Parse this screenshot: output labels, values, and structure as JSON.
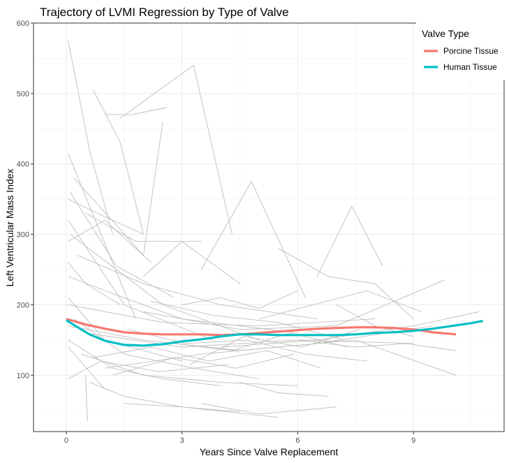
{
  "chart_data": {
    "type": "line",
    "title": "Trajectory of LVMI Regression by Type of Valve",
    "xlabel": "Years Since Valve Replacement",
    "ylabel": "Left Ventricular Mass Index",
    "xlim": [
      -0.85,
      11.35
    ],
    "ylim": [
      20,
      600
    ],
    "x_ticks": [
      0,
      3,
      6,
      9
    ],
    "y_ticks": [
      100,
      200,
      300,
      400,
      500,
      600
    ],
    "grid": true,
    "legend": {
      "title": "Valve Type",
      "position": "top-right",
      "entries": [
        {
          "label": "Porcine Tissue",
          "color": "#F8766D"
        },
        {
          "label": "Human Tissue",
          "color": "#00BFC4"
        }
      ]
    },
    "series": [
      {
        "name": "Porcine Tissue",
        "color": "#F8766D",
        "x": [
          0,
          0.5,
          1.0,
          1.5,
          2.0,
          2.5,
          3.0,
          3.5,
          4.0,
          4.5,
          5.0,
          5.5,
          6.0,
          6.5,
          7.0,
          7.5,
          8.0,
          8.5,
          9.0,
          9.5,
          10.1
        ],
        "y": [
          180,
          172,
          166,
          161,
          159,
          158,
          158,
          158,
          157,
          158,
          160,
          162,
          164,
          166,
          167,
          168,
          168,
          167,
          165,
          161,
          158
        ]
      },
      {
        "name": "Human Tissue",
        "color": "#00BFC4",
        "x": [
          0,
          0.3,
          0.6,
          1.0,
          1.5,
          2.0,
          2.5,
          3.0,
          3.5,
          4.0,
          4.5,
          5.0,
          5.5,
          6.0,
          6.5,
          7.0,
          7.5,
          8.0,
          8.5,
          9.0,
          9.5,
          10.0,
          10.5,
          10.8
        ],
        "y": [
          178,
          168,
          158,
          149,
          143,
          142,
          144,
          148,
          151,
          155,
          158,
          158,
          157,
          157,
          157,
          157,
          158,
          160,
          161,
          163,
          166,
          170,
          174,
          177
        ]
      }
    ],
    "individual_trajectories": {
      "color": "#bdbdbd",
      "lines": [
        {
          "x": [
            0.05,
            0.6,
            1.2
          ],
          "y": [
            575,
            420,
            300
          ]
        },
        {
          "x": [
            0.7,
            1.4,
            2.0
          ],
          "y": [
            505,
            430,
            300
          ]
        },
        {
          "x": [
            1.0,
            1.7,
            2.6
          ],
          "y": [
            470,
            470,
            480
          ]
        },
        {
          "x": [
            1.4,
            3.3,
            4.3
          ],
          "y": [
            465,
            540,
            300
          ]
        },
        {
          "x": [
            0.05,
            0.6,
            1.8
          ],
          "y": [
            415,
            340,
            180
          ]
        },
        {
          "x": [
            0.2,
            2.0,
            2.5
          ],
          "y": [
            380,
            270,
            460
          ]
        },
        {
          "x": [
            0.1,
            1.3,
            2.8
          ],
          "y": [
            360,
            255,
            210
          ]
        },
        {
          "x": [
            0.05,
            1.5,
            3.8
          ],
          "y": [
            320,
            200,
            150
          ]
        },
        {
          "x": [
            3.5,
            4.8,
            6.2
          ],
          "y": [
            250,
            375,
            210
          ]
        },
        {
          "x": [
            6.5,
            7.4,
            8.2
          ],
          "y": [
            240,
            340,
            255
          ]
        },
        {
          "x": [
            2.0,
            3.0,
            4.5
          ],
          "y": [
            240,
            290,
            230
          ]
        },
        {
          "x": [
            0.05,
            1.0,
            2.2
          ],
          "y": [
            290,
            320,
            260
          ]
        },
        {
          "x": [
            0.1,
            2.5,
            5.0
          ],
          "y": [
            300,
            200,
            150
          ]
        },
        {
          "x": [
            0.05,
            1.0,
            3.0
          ],
          "y": [
            210,
            150,
            120
          ]
        },
        {
          "x": [
            0.2,
            1.5,
            3.3,
            5.0
          ],
          "y": [
            180,
            130,
            110,
            95
          ]
        },
        {
          "x": [
            0.05,
            1.2,
            2.5,
            4.0
          ],
          "y": [
            150,
            110,
            95,
            85
          ]
        },
        {
          "x": [
            0.4,
            2.0,
            4.0,
            6.0
          ],
          "y": [
            130,
            100,
            90,
            85
          ]
        },
        {
          "x": [
            0.6,
            1.5,
            3.0,
            4.5
          ],
          "y": [
            90,
            70,
            55,
            48
          ]
        },
        {
          "x": [
            1.5,
            3.0,
            5.5
          ],
          "y": [
            60,
            55,
            40
          ]
        },
        {
          "x": [
            3.5,
            5.0,
            7.0
          ],
          "y": [
            60,
            45,
            55
          ]
        },
        {
          "x": [
            0.05,
            2.5,
            5.0,
            8.0
          ],
          "y": [
            200,
            175,
            170,
            180
          ]
        },
        {
          "x": [
            0.5,
            3.0,
            6.0,
            9.0
          ],
          "y": [
            160,
            140,
            150,
            145
          ]
        },
        {
          "x": [
            0.05,
            2.0,
            4.5,
            7.5,
            10.1
          ],
          "y": [
            170,
            150,
            135,
            150,
            100
          ]
        },
        {
          "x": [
            1.0,
            3.5,
            6.5,
            9.5
          ],
          "y": [
            110,
            130,
            145,
            170
          ]
        },
        {
          "x": [
            2.0,
            4.5,
            7.0,
            9.8
          ],
          "y": [
            190,
            165,
            170,
            235
          ]
        },
        {
          "x": [
            4.0,
            6.5,
            9.0,
            10.7
          ],
          "y": [
            140,
            150,
            170,
            190
          ]
        },
        {
          "x": [
            0.05,
            1.5,
            3.0,
            4.5,
            6.0
          ],
          "y": [
            240,
            210,
            180,
            170,
            160
          ]
        },
        {
          "x": [
            0.3,
            2.0,
            4.0,
            6.5
          ],
          "y": [
            270,
            230,
            200,
            180
          ]
        },
        {
          "x": [
            0.05,
            0.9,
            2.4,
            4.2
          ],
          "y": [
            95,
            120,
            105,
            115
          ]
        },
        {
          "x": [
            1.2,
            2.8,
            4.4,
            5.9
          ],
          "y": [
            100,
            125,
            110,
            130
          ]
        },
        {
          "x": [
            2.2,
            3.8,
            5.5,
            7.2
          ],
          "y": [
            205,
            185,
            175,
            150
          ]
        },
        {
          "x": [
            5.0,
            6.4,
            7.8,
            9.2
          ],
          "y": [
            180,
            200,
            220,
            190
          ]
        },
        {
          "x": [
            6.0,
            7.5,
            8.8,
            10.1
          ],
          "y": [
            150,
            140,
            145,
            135
          ]
        },
        {
          "x": [
            5.5,
            6.8,
            8.0,
            9.0
          ],
          "y": [
            280,
            240,
            230,
            180
          ]
        },
        {
          "x": [
            0.05,
            0.8,
            2.0
          ],
          "y": [
            350,
            330,
            300
          ]
        },
        {
          "x": [
            0.05,
            0.5,
            1.4
          ],
          "y": [
            260,
            230,
            200
          ]
        },
        {
          "x": [
            0.5,
            1.8,
            3.5
          ],
          "y": [
            330,
            290,
            290
          ]
        },
        {
          "x": [
            0.05,
            1.0
          ],
          "y": [
            140,
            80
          ]
        },
        {
          "x": [
            0.5,
            0.55
          ],
          "y": [
            100,
            35
          ]
        },
        {
          "x": [
            4.5,
            5.5,
            6.8
          ],
          "y": [
            90,
            75,
            70
          ]
        },
        {
          "x": [
            2.8,
            4.3,
            5.8,
            7.3
          ],
          "y": [
            145,
            135,
            160,
            140
          ]
        },
        {
          "x": [
            3.2,
            4.6,
            6.1,
            7.6
          ],
          "y": [
            115,
            155,
            140,
            165
          ]
        },
        {
          "x": [
            1.6,
            3.1,
            4.7,
            6.2,
            7.8
          ],
          "y": [
            165,
            145,
            150,
            130,
            120
          ]
        },
        {
          "x": [
            0.7,
            2.2,
            3.7,
            5.2,
            6.6
          ],
          "y": [
            125,
            140,
            120,
            135,
            110
          ]
        },
        {
          "x": [
            3.0,
            4.0,
            5.0,
            6.0
          ],
          "y": [
            200,
            210,
            195,
            220
          ]
        },
        {
          "x": [
            7.0,
            8.0,
            9.0
          ],
          "y": [
            200,
            170,
            155
          ]
        }
      ]
    }
  }
}
